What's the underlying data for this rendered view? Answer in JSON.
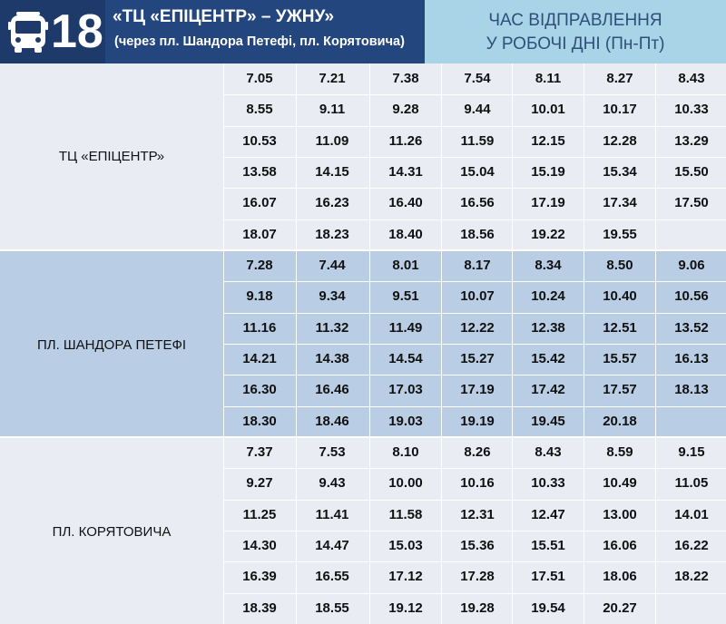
{
  "header": {
    "route_number": "18",
    "title": "«ТЦ «ЕПІЦЕНТР» – УЖНУ»",
    "subtitle": "(через пл. Шандора Петефі, пл. Корятовича)",
    "time_title_line1": "ЧАС ВІДПРАВЛЕННЯ",
    "time_title_line2": "У РОБОЧІ ДНІ (Пн-Пт)",
    "icon": "bus-icon"
  },
  "colors": {
    "route_box": "#1e3a6b",
    "title_box": "#24467f",
    "time_box": "#a9d3e6",
    "section_light": "#e9ecf3",
    "section_blue": "#b9cde4"
  },
  "sections": [
    {
      "stop": "ТЦ «ЕПІЦЕНТР»",
      "rows": [
        [
          "7.05",
          "7.21",
          "7.38",
          "7.54",
          "8.11",
          "8.27",
          "8.43"
        ],
        [
          "8.55",
          "9.11",
          "9.28",
          "9.44",
          "10.01",
          "10.17",
          "10.33"
        ],
        [
          "10.53",
          "11.09",
          "11.26",
          "11.59",
          "12.15",
          "12.28",
          "13.29"
        ],
        [
          "13.58",
          "14.15",
          "14.31",
          "15.04",
          "15.19",
          "15.34",
          "15.50"
        ],
        [
          "16.07",
          "16.23",
          "16.40",
          "16.56",
          "17.19",
          "17.34",
          "17.50"
        ],
        [
          "18.07",
          "18.23",
          "18.40",
          "18.56",
          "19.22",
          "19.55",
          ""
        ]
      ]
    },
    {
      "stop": "ПЛ. ШАНДОРА ПЕТЕФІ",
      "rows": [
        [
          "7.28",
          "7.44",
          "8.01",
          "8.17",
          "8.34",
          "8.50",
          "9.06"
        ],
        [
          "9.18",
          "9.34",
          "9.51",
          "10.07",
          "10.24",
          "10.40",
          "10.56"
        ],
        [
          "11.16",
          "11.32",
          "11.49",
          "12.22",
          "12.38",
          "12.51",
          "13.52"
        ],
        [
          "14.21",
          "14.38",
          "14.54",
          "15.27",
          "15.42",
          "15.57",
          "16.13"
        ],
        [
          "16.30",
          "16.46",
          "17.03",
          "17.19",
          "17.42",
          "17.57",
          "18.13"
        ],
        [
          "18.30",
          "18.46",
          "19.03",
          "19.19",
          "19.45",
          "20.18",
          ""
        ]
      ]
    },
    {
      "stop": "ПЛ. КОРЯТОВИЧА",
      "rows": [
        [
          "7.37",
          "7.53",
          "8.10",
          "8.26",
          "8.43",
          "8.59",
          "9.15"
        ],
        [
          "9.27",
          "9.43",
          "10.00",
          "10.16",
          "10.33",
          "10.49",
          "11.05"
        ],
        [
          "11.25",
          "11.41",
          "11.58",
          "12.31",
          "12.47",
          "13.00",
          "14.01"
        ],
        [
          "14.30",
          "14.47",
          "15.03",
          "15.36",
          "15.51",
          "16.06",
          "16.22"
        ],
        [
          "16.39",
          "16.55",
          "17.12",
          "17.28",
          "17.51",
          "18.06",
          "18.22"
        ],
        [
          "18.39",
          "18.55",
          "19.12",
          "19.28",
          "19.54",
          "20.27",
          ""
        ]
      ]
    }
  ]
}
